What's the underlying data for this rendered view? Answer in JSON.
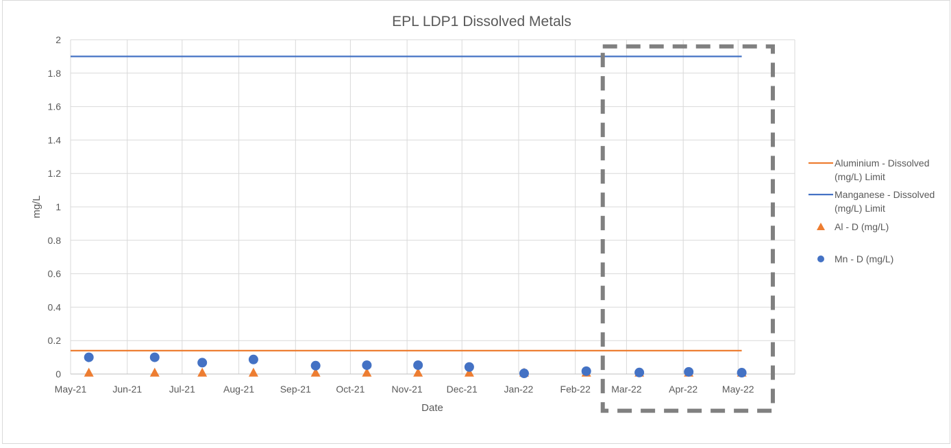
{
  "chart_data": {
    "type": "scatter",
    "title": "EPL LDP1 Dissolved Metals",
    "xlabel": "Date",
    "ylabel": "mg/L",
    "ylim": [
      0,
      2
    ],
    "y_ticks": [
      "0",
      "0.2",
      "0.4",
      "0.6",
      "0.8",
      "1",
      "1.2",
      "1.4",
      "1.6",
      "1.8",
      "2"
    ],
    "x_range": [
      "2021-05-01",
      "2022-06-01"
    ],
    "x_ticks": [
      {
        "date": "2021-05-01",
        "label": "May-21"
      },
      {
        "date": "2021-06-01",
        "label": "Jun-21"
      },
      {
        "date": "2021-07-01",
        "label": "Jul-21"
      },
      {
        "date": "2021-08-01",
        "label": "Aug-21"
      },
      {
        "date": "2021-09-01",
        "label": "Sep-21"
      },
      {
        "date": "2021-10-01",
        "label": "Oct-21"
      },
      {
        "date": "2021-11-01",
        "label": "Nov-21"
      },
      {
        "date": "2021-12-01",
        "label": "Dec-21"
      },
      {
        "date": "2022-01-01",
        "label": "Jan-22"
      },
      {
        "date": "2022-02-01",
        "label": "Feb-22"
      },
      {
        "date": "2022-03-01",
        "label": "Mar-22"
      },
      {
        "date": "2022-04-01",
        "label": "Apr-22"
      },
      {
        "date": "2022-05-01",
        "label": "May-22"
      }
    ],
    "grid": true,
    "legend_position": "right",
    "series": [
      {
        "name": "Aluminium - Dissolved (mg/L) Limit",
        "kind": "line",
        "color": "#ED7D31",
        "points": [
          {
            "x": "2021-05-01",
            "y": 0.14
          },
          {
            "x": "2022-05-03",
            "y": 0.14
          }
        ]
      },
      {
        "name": "Manganese - Dissolved (mg/L) Limit",
        "kind": "line",
        "color": "#4472C4",
        "points": [
          {
            "x": "2021-05-01",
            "y": 1.9
          },
          {
            "x": "2022-05-03",
            "y": 1.9
          }
        ]
      },
      {
        "name": "Al - D (mg/L)",
        "kind": "marker-triangle",
        "color": "#ED7D31",
        "points": [
          {
            "x": "2021-05-11",
            "y": 0.005
          },
          {
            "x": "2021-06-16",
            "y": 0.005
          },
          {
            "x": "2021-07-12",
            "y": 0.005
          },
          {
            "x": "2021-08-09",
            "y": 0.005
          },
          {
            "x": "2021-09-12",
            "y": 0.005
          },
          {
            "x": "2021-10-10",
            "y": 0.005
          },
          {
            "x": "2021-11-07",
            "y": 0.005
          },
          {
            "x": "2021-12-05",
            "y": 0.005
          },
          {
            "x": "2022-01-04",
            "y": 0.005
          },
          {
            "x": "2022-02-07",
            "y": 0.005
          },
          {
            "x": "2022-03-08",
            "y": 0.005
          },
          {
            "x": "2022-04-04",
            "y": 0.005
          },
          {
            "x": "2022-05-03",
            "y": 0.005
          }
        ]
      },
      {
        "name": "Mn - D (mg/L)",
        "kind": "marker-circle",
        "color": "#4472C4",
        "points": [
          {
            "x": "2021-05-11",
            "y": 0.1
          },
          {
            "x": "2021-06-16",
            "y": 0.1
          },
          {
            "x": "2021-07-12",
            "y": 0.068
          },
          {
            "x": "2021-08-09",
            "y": 0.087
          },
          {
            "x": "2021-09-12",
            "y": 0.05
          },
          {
            "x": "2021-10-10",
            "y": 0.053
          },
          {
            "x": "2021-11-07",
            "y": 0.053
          },
          {
            "x": "2021-12-05",
            "y": 0.042
          },
          {
            "x": "2022-01-04",
            "y": 0.004
          },
          {
            "x": "2022-02-07",
            "y": 0.017
          },
          {
            "x": "2022-03-08",
            "y": 0.009
          },
          {
            "x": "2022-04-04",
            "y": 0.013
          },
          {
            "x": "2022-05-03",
            "y": 0.008
          }
        ]
      }
    ],
    "annotations": [
      {
        "kind": "dashed-rectangle",
        "color": "#808080",
        "x_from": "2022-02-16",
        "x_to": "2022-05-20",
        "y_from": -0.22,
        "y_to": 1.96
      }
    ]
  }
}
